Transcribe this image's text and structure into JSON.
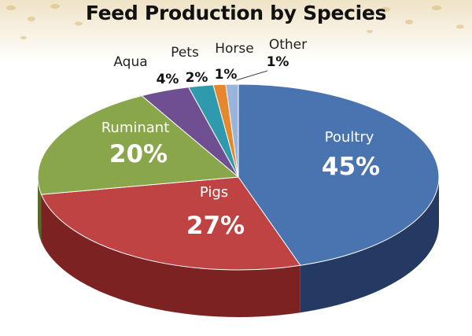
{
  "chart_data": {
    "type": "pie",
    "title": "Feed Production by Species",
    "slices": [
      {
        "label": "Poultry",
        "value": 45,
        "value_label": "45%",
        "color": "#4a74b0",
        "side_color": "#243a62"
      },
      {
        "label": "Pigs",
        "value": 27,
        "value_label": "27%",
        "color": "#bf4342",
        "side_color": "#7d2223"
      },
      {
        "label": "Ruminant",
        "value": 20,
        "value_label": "20%",
        "color": "#8aa64a",
        "side_color": "#566b27"
      },
      {
        "label": "Aqua",
        "value": 4,
        "value_label": "4%",
        "color": "#6f4f92",
        "side_color": "#432e5c"
      },
      {
        "label": "Pets",
        "value": 2,
        "value_label": "2%",
        "color": "#2f9aae",
        "side_color": "#1a6270"
      },
      {
        "label": "Horse",
        "value": 1,
        "value_label": "1%",
        "color": "#e6872e",
        "side_color": "#9a5512"
      },
      {
        "label": "Other",
        "value": 1,
        "value_label": "1%",
        "color": "#9bb4dc",
        "side_color": "#5f7aa6"
      }
    ]
  }
}
